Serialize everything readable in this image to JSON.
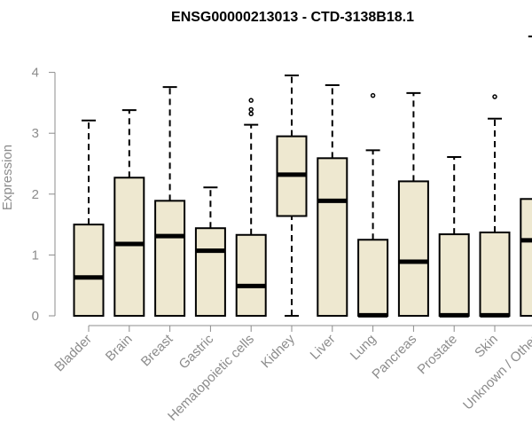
{
  "chart_data": {
    "type": "box",
    "title": "ENSG00000213013 - CTD-3138B18.1",
    "xlabel": "",
    "ylabel": "Expression",
    "ylim": [
      0,
      4.6
    ],
    "yticks": [
      0,
      1,
      2,
      3,
      4
    ],
    "grid": false,
    "legend": "none",
    "colors": {
      "box_fill": "#EEE8D0",
      "stroke": "#000000",
      "axis_text": "#8c8c8c"
    },
    "categories": [
      "Bladder",
      "Brain",
      "Breast",
      "Gastric",
      "Hematopoietic cells",
      "Kidney",
      "Liver",
      "Lung",
      "Pancreas",
      "Prostate",
      "Skin",
      "Unknown / Other"
    ],
    "boxes": [
      {
        "category": "Bladder",
        "whisker_low": 0,
        "q1": 0,
        "median": 0.63,
        "q3": 1.5,
        "whisker_high": 3.21,
        "outliers": []
      },
      {
        "category": "Brain",
        "whisker_low": 0,
        "q1": 0,
        "median": 1.18,
        "q3": 2.27,
        "whisker_high": 3.38,
        "outliers": []
      },
      {
        "category": "Breast",
        "whisker_low": 0,
        "q1": 0,
        "median": 1.31,
        "q3": 1.89,
        "whisker_high": 3.76,
        "outliers": []
      },
      {
        "category": "Gastric",
        "whisker_low": 0,
        "q1": 0,
        "median": 1.07,
        "q3": 1.44,
        "whisker_high": 2.11,
        "outliers": []
      },
      {
        "category": "Hematopoietic cells",
        "whisker_low": 0,
        "q1": 0,
        "median": 0.49,
        "q3": 1.33,
        "whisker_high": 3.14,
        "outliers": [
          3.32,
          3.39,
          3.54
        ]
      },
      {
        "category": "Kidney",
        "whisker_low": 0,
        "q1": 1.64,
        "median": 2.32,
        "q3": 2.95,
        "whisker_high": 3.95,
        "outliers": []
      },
      {
        "category": "Liver",
        "whisker_low": 0,
        "q1": 0,
        "median": 1.89,
        "q3": 2.59,
        "whisker_high": 3.79,
        "outliers": []
      },
      {
        "category": "Lung",
        "whisker_low": 0,
        "q1": 0,
        "median": 0.01,
        "q3": 1.25,
        "whisker_high": 2.72,
        "outliers": [
          3.62
        ]
      },
      {
        "category": "Pancreas",
        "whisker_low": 0,
        "q1": 0,
        "median": 0.89,
        "q3": 2.21,
        "whisker_high": 3.66,
        "outliers": []
      },
      {
        "category": "Prostate",
        "whisker_low": 0,
        "q1": 0,
        "median": 0.01,
        "q3": 1.34,
        "whisker_high": 2.61,
        "outliers": []
      },
      {
        "category": "Skin",
        "whisker_low": 0,
        "q1": 0,
        "median": 0.01,
        "q3": 1.37,
        "whisker_high": 3.24,
        "outliers": [
          3.6
        ]
      },
      {
        "category": "Unknown / Other",
        "whisker_low": 0,
        "q1": 0,
        "median": 1.24,
        "q3": 1.92,
        "whisker_high": 4.59,
        "outliers": []
      }
    ]
  }
}
